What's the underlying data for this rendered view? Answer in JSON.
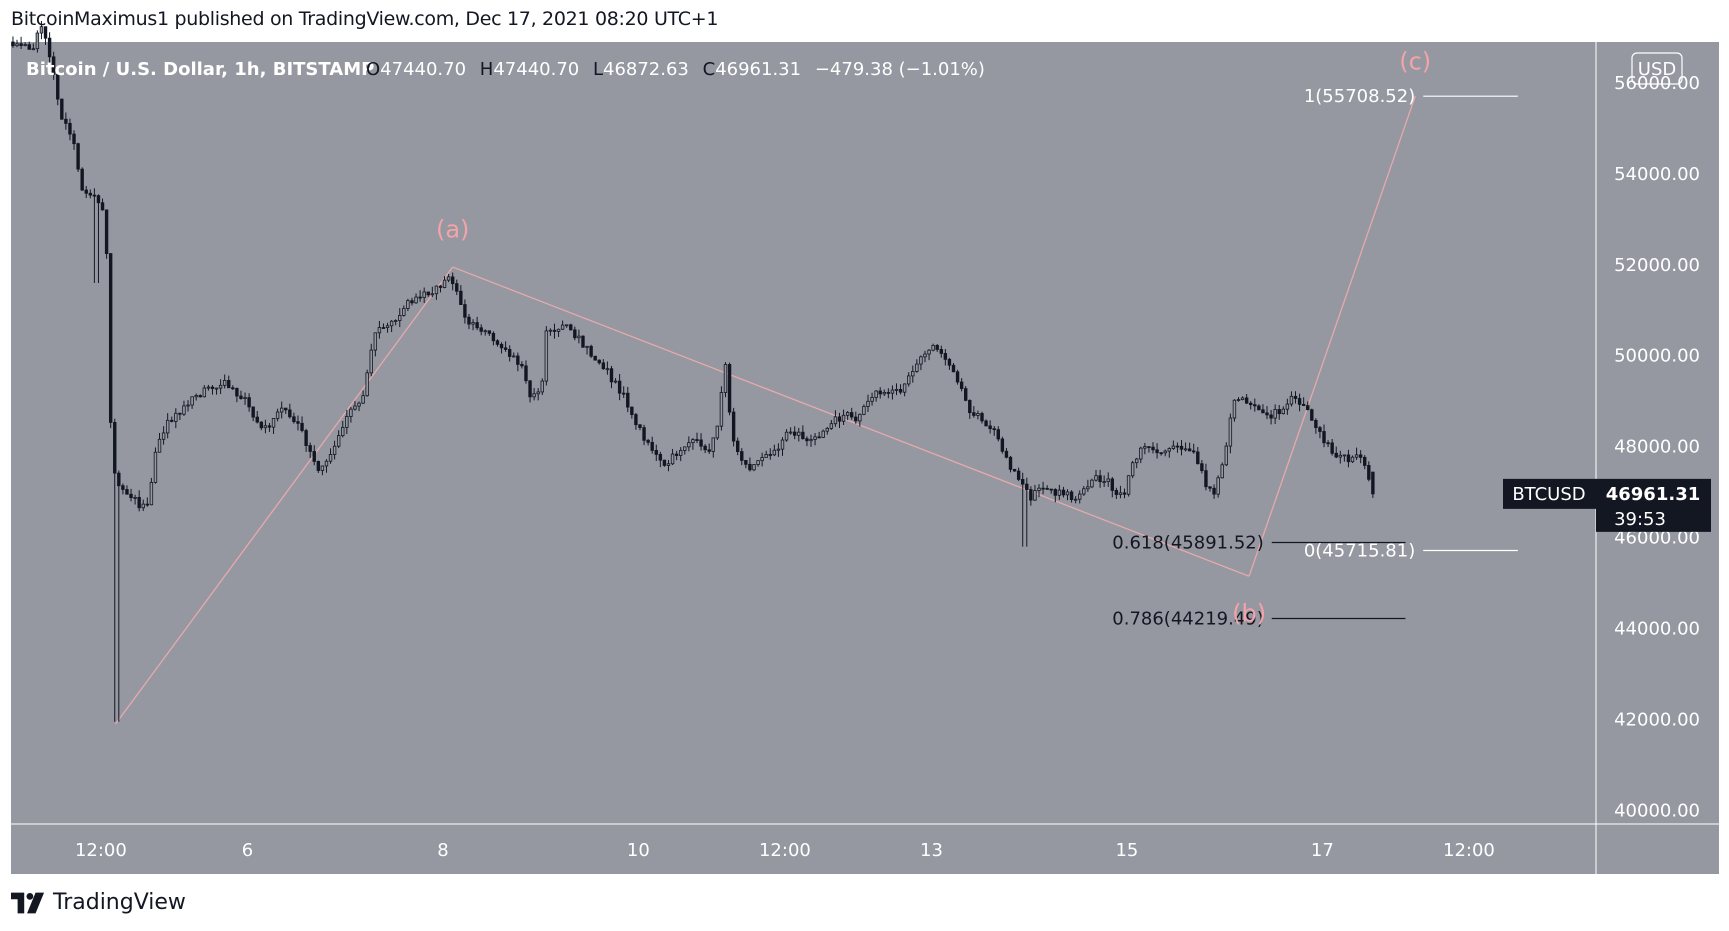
{
  "header": {
    "publisher_line": "BitcoinMaximus1 published on TradingView.com, Dec 17, 2021 08:20 UTC+1"
  },
  "footer": {
    "brand": "TradingView"
  },
  "colors": {
    "plot_bg": "#9598a1",
    "candle": "#131722",
    "wave_line": "#e6a9ad",
    "wave_label": "#f4a3a8",
    "fib_line": "#131722",
    "axis_text": "#ffffff",
    "badge_bg": "#131722"
  },
  "chart_data": {
    "type": "candlestick",
    "symbol_title": "Bitcoin / U.S. Dollar, 1h, BITSTAMP",
    "ohlc": {
      "o_label": "O",
      "o_value": "47440.70",
      "h_label": "H",
      "h_value": "47440.70",
      "l_label": "L",
      "l_value": "46872.63",
      "c_label": "C",
      "c_value": "46961.31",
      "change": "−479.38 (−1.01%)"
    },
    "currency_button": "USD",
    "y_axis": {
      "ticks": [
        56000,
        54000,
        52000,
        50000,
        48000,
        46000,
        44000,
        42000,
        40000
      ],
      "tick_labels": [
        "56000.00",
        "54000.00",
        "52000.00",
        "50000.00",
        "48000.00",
        "46000.00",
        "44000.00",
        "42000.00",
        "40000.00"
      ],
      "range": [
        39700,
        56900
      ]
    },
    "x_axis": {
      "tick_labels": [
        "12:00",
        "6",
        "8",
        "10",
        "12:00",
        "13",
        "15",
        "17",
        "12:00"
      ],
      "tick_positions_days": [
        4.5,
        6,
        8,
        10,
        11.5,
        13,
        15,
        17,
        18.5
      ],
      "range_days": [
        3.58,
        19.8
      ]
    },
    "price_path": [
      [
        3.6,
        56900
      ],
      [
        3.85,
        56800
      ],
      [
        3.93,
        57300
      ],
      [
        4.05,
        56300
      ],
      [
        4.12,
        55300
      ],
      [
        4.25,
        54800
      ],
      [
        4.35,
        53700
      ],
      [
        4.5,
        53500
      ],
      [
        4.58,
        53000
      ],
      [
        4.62,
        51500
      ],
      [
        4.65,
        47500
      ],
      [
        4.7,
        47300
      ],
      [
        4.8,
        47000
      ],
      [
        4.9,
        46800
      ],
      [
        5.0,
        46600
      ],
      [
        5.1,
        47800
      ],
      [
        5.2,
        48500
      ],
      [
        5.4,
        48900
      ],
      [
        5.6,
        49200
      ],
      [
        5.8,
        49400
      ],
      [
        6.0,
        49100
      ],
      [
        6.2,
        48300
      ],
      [
        6.4,
        48900
      ],
      [
        6.6,
        48300
      ],
      [
        6.75,
        47500
      ],
      [
        6.9,
        47800
      ],
      [
        7.05,
        48700
      ],
      [
        7.2,
        48900
      ],
      [
        7.35,
        50500
      ],
      [
        7.55,
        50800
      ],
      [
        7.75,
        51300
      ],
      [
        7.95,
        51400
      ],
      [
        8.1,
        51700
      ],
      [
        8.2,
        51300
      ],
      [
        8.3,
        50700
      ],
      [
        8.5,
        50500
      ],
      [
        8.7,
        50100
      ],
      [
        8.85,
        49700
      ],
      [
        8.95,
        49000
      ],
      [
        9.05,
        49300
      ],
      [
        9.1,
        50500
      ],
      [
        9.3,
        50700
      ],
      [
        9.5,
        50200
      ],
      [
        9.7,
        49700
      ],
      [
        9.9,
        49100
      ],
      [
        10.05,
        48400
      ],
      [
        10.2,
        47800
      ],
      [
        10.3,
        47600
      ],
      [
        10.45,
        47900
      ],
      [
        10.6,
        48200
      ],
      [
        10.75,
        47800
      ],
      [
        10.85,
        48400
      ],
      [
        10.93,
        49900
      ],
      [
        11.0,
        48100
      ],
      [
        11.15,
        47500
      ],
      [
        11.3,
        47800
      ],
      [
        11.45,
        47900
      ],
      [
        11.6,
        48400
      ],
      [
        11.8,
        48100
      ],
      [
        12.0,
        48500
      ],
      [
        12.15,
        48700
      ],
      [
        12.3,
        48600
      ],
      [
        12.45,
        49200
      ],
      [
        12.6,
        49100
      ],
      [
        12.75,
        49300
      ],
      [
        12.9,
        49800
      ],
      [
        12.98,
        50100
      ],
      [
        13.05,
        50300
      ],
      [
        13.2,
        49800
      ],
      [
        13.3,
        49500
      ],
      [
        13.4,
        48900
      ],
      [
        13.5,
        48700
      ],
      [
        13.7,
        48300
      ],
      [
        13.85,
        47500
      ],
      [
        13.95,
        47300
      ],
      [
        14.05,
        46800
      ],
      [
        14.15,
        47100
      ],
      [
        14.3,
        47000
      ],
      [
        14.5,
        46900
      ],
      [
        14.7,
        47300
      ],
      [
        14.85,
        47200
      ],
      [
        15.0,
        46900
      ],
      [
        15.1,
        47600
      ],
      [
        15.2,
        48100
      ],
      [
        15.4,
        47900
      ],
      [
        15.6,
        48000
      ],
      [
        15.75,
        47800
      ],
      [
        15.85,
        47200
      ],
      [
        15.95,
        47000
      ],
      [
        16.05,
        48000
      ],
      [
        16.15,
        49100
      ],
      [
        16.35,
        48900
      ],
      [
        16.5,
        48700
      ],
      [
        16.65,
        48800
      ],
      [
        16.75,
        49100
      ],
      [
        16.85,
        48900
      ],
      [
        16.95,
        48600
      ],
      [
        17.05,
        48100
      ],
      [
        17.2,
        47800
      ],
      [
        17.35,
        47700
      ],
      [
        17.45,
        47800
      ],
      [
        17.5,
        47440.7
      ],
      [
        17.55,
        46961.31
      ]
    ],
    "wave_lines": [
      {
        "from": [
          4.65,
          41900
        ],
        "to": [
          8.1,
          51950
        ]
      },
      {
        "from": [
          8.1,
          51950
        ],
        "to": [
          16.25,
          45150
        ]
      },
      {
        "from": [
          16.25,
          45150
        ],
        "to": [
          17.95,
          55708.52
        ]
      }
    ],
    "wave_labels": [
      {
        "text": "(a)",
        "x": 8.1,
        "y": 52600
      },
      {
        "text": "(b)",
        "x": 16.25,
        "y": 44150
      },
      {
        "text": "(c)",
        "x": 17.95,
        "y": 56300
      }
    ],
    "fib_levels": [
      {
        "label": "0.618(45891.52)",
        "price": 45891.52,
        "x_start": 16.4,
        "x_end": 17.85,
        "color": "#131722"
      },
      {
        "label": "0.786(44219.49)",
        "price": 44219.49,
        "x_start": 16.4,
        "x_end": 17.85,
        "color": "#131722"
      },
      {
        "label": "1(55708.52)",
        "price": 55708.52,
        "x_start": 17.95,
        "x_end": 19.0,
        "color": "#ffffff"
      },
      {
        "label": "0(45715.81)",
        "price": 45715.81,
        "x_start": 17.95,
        "x_end": 19.0,
        "color": "#ffffff"
      }
    ],
    "price_badge": {
      "symbol": "BTCUSD",
      "price": "46961.31",
      "countdown": "39:53",
      "value": 46961.31
    }
  }
}
